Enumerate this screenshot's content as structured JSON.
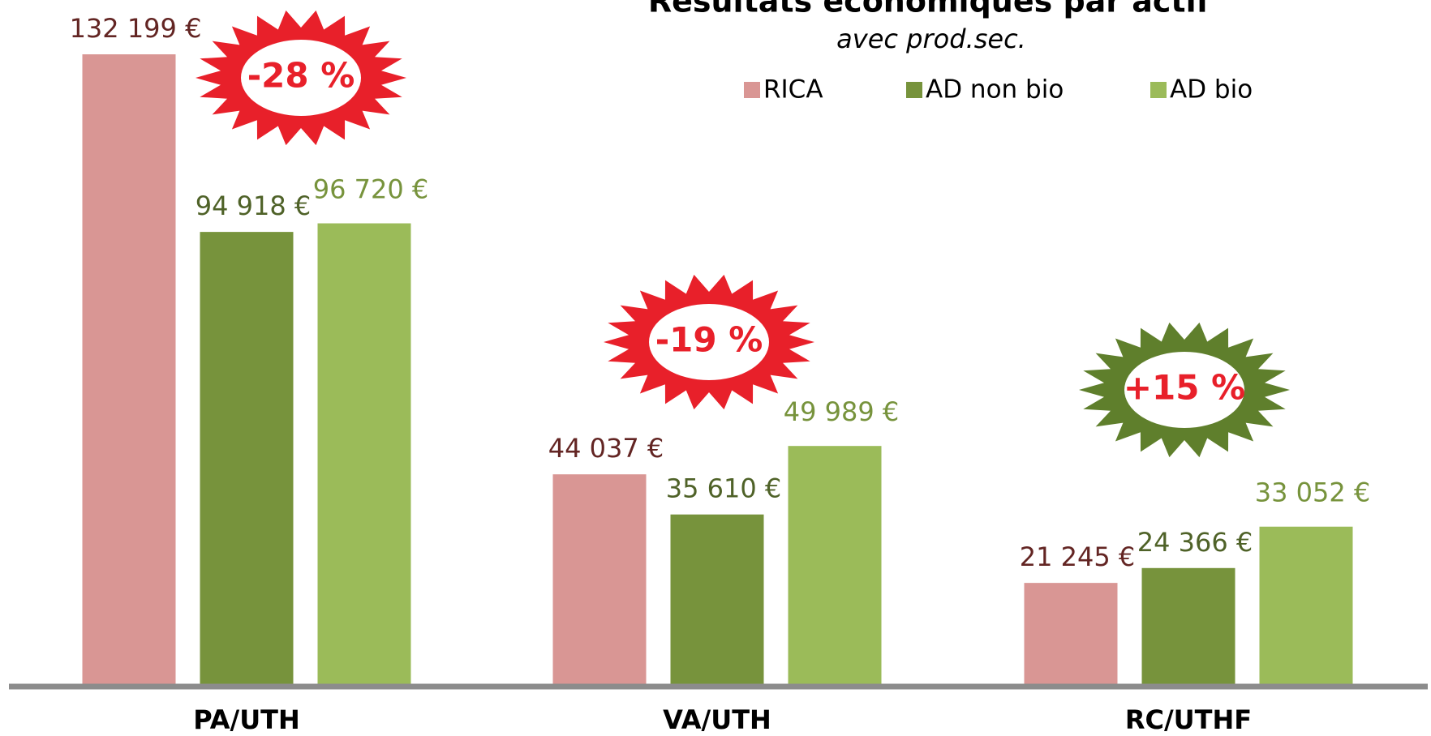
{
  "chart_data": {
    "type": "bar",
    "title": "Résultats économiques par actif",
    "subtitle": "avec prod.sec.",
    "categories": [
      "PA/UTH",
      "VA/UTH",
      "RC/UTHF"
    ],
    "series": [
      {
        "name": "RICA",
        "color": "#d99694",
        "label_color": "#632523",
        "values": [
          132199,
          44037,
          21245
        ],
        "value_labels": [
          "132 199 €",
          "44 037 €",
          "21 245 €"
        ]
      },
      {
        "name": "AD non bio",
        "color": "#77933c",
        "label_color": "#4f6228",
        "values": [
          94918,
          35610,
          24366
        ],
        "value_labels": [
          "94 918 €",
          "35 610 €",
          "24 366 €"
        ]
      },
      {
        "name": "AD bio",
        "color": "#9bbb59",
        "label_color": "#77933c",
        "values": [
          96720,
          49989,
          33052
        ],
        "value_labels": [
          "96 720 €",
          "49 989 €",
          "33 052 €"
        ]
      }
    ],
    "annotations": [
      {
        "text": "-28 %",
        "color": "#e8202a"
      },
      {
        "text": "-19 %",
        "color": "#e8202a"
      },
      {
        "text": "+15 %",
        "color": "#5f7f2c"
      }
    ]
  }
}
